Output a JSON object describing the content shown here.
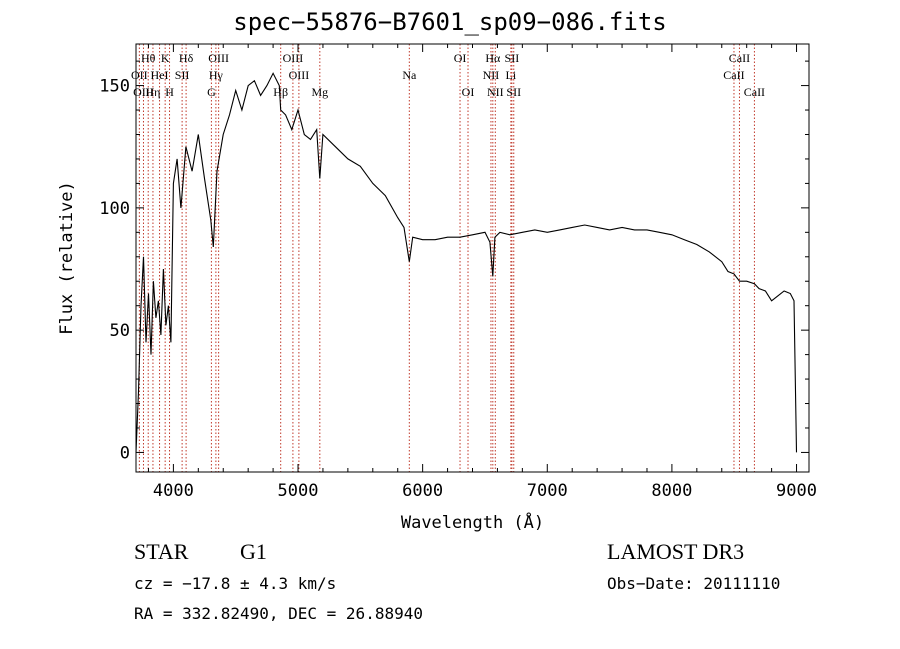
{
  "chart_data": {
    "type": "line",
    "title": "spec−55876−B7601_sp09−086.fits",
    "xlabel": "Wavelength (Å)",
    "ylabel": "Flux (relative)",
    "xlim": [
      3700,
      9100
    ],
    "ylim": [
      -8,
      167
    ],
    "xticks": [
      4000,
      5000,
      6000,
      7000,
      8000,
      9000
    ],
    "yticks": [
      0,
      50,
      100,
      150
    ],
    "series": [
      {
        "name": "spectrum",
        "x": [
          3700,
          3720,
          3740,
          3760,
          3780,
          3800,
          3820,
          3840,
          3860,
          3880,
          3900,
          3920,
          3940,
          3960,
          3980,
          4000,
          4030,
          4060,
          4100,
          4150,
          4200,
          4250,
          4300,
          4320,
          4350,
          4400,
          4450,
          4500,
          4550,
          4600,
          4650,
          4700,
          4750,
          4800,
          4850,
          4861,
          4900,
          4950,
          5000,
          5050,
          5100,
          5150,
          5175,
          5200,
          5300,
          5400,
          5500,
          5600,
          5700,
          5800,
          5850,
          5893,
          5920,
          6000,
          6100,
          6200,
          6300,
          6400,
          6500,
          6540,
          6563,
          6580,
          6620,
          6700,
          6800,
          6900,
          7000,
          7100,
          7200,
          7300,
          7400,
          7500,
          7600,
          7700,
          7800,
          7900,
          8000,
          8100,
          8200,
          8300,
          8400,
          8450,
          8498,
          8542,
          8600,
          8662,
          8700,
          8750,
          8800,
          8850,
          8900,
          8950,
          8980,
          8995,
          9000
        ],
        "y": [
          0,
          25,
          60,
          80,
          45,
          65,
          40,
          70,
          55,
          62,
          48,
          75,
          52,
          60,
          45,
          110,
          120,
          100,
          125,
          115,
          130,
          112,
          95,
          84,
          115,
          130,
          138,
          148,
          140,
          150,
          152,
          146,
          150,
          155,
          150,
          140,
          138,
          132,
          140,
          130,
          128,
          132,
          112,
          130,
          125,
          120,
          117,
          110,
          105,
          96,
          92,
          78,
          88,
          87,
          87,
          88,
          88,
          89,
          90,
          86,
          72,
          88,
          90,
          89,
          90,
          91,
          90,
          91,
          92,
          93,
          92,
          91,
          92,
          91,
          91,
          90,
          89,
          87,
          85,
          82,
          78,
          74,
          73,
          70,
          70,
          69,
          67,
          66,
          62,
          64,
          66,
          65,
          62,
          15,
          0
        ]
      }
    ],
    "lines": [
      {
        "name": "Hθ",
        "wl": 3798,
        "row": 1
      },
      {
        "name": "OII",
        "wl": 3727,
        "row": 2
      },
      {
        "name": "OIII",
        "wl": 3760,
        "row": 3
      },
      {
        "name": "Hη",
        "wl": 3836,
        "row": 3
      },
      {
        "name": "HeI",
        "wl": 3889,
        "row": 2
      },
      {
        "name": "K",
        "wl": 3934,
        "row": 1
      },
      {
        "name": "H",
        "wl": 3969,
        "row": 3
      },
      {
        "name": "SII",
        "wl": 4070,
        "row": 2
      },
      {
        "name": "Hδ",
        "wl": 4102,
        "row": 1
      },
      {
        "name": "OIII",
        "wl": 4363,
        "row": 1
      },
      {
        "name": "Hγ",
        "wl": 4341,
        "row": 2
      },
      {
        "name": "G",
        "wl": 4305,
        "row": 3
      },
      {
        "name": "OIII",
        "wl": 4959,
        "row": 1
      },
      {
        "name": "OIII",
        "wl": 5007,
        "row": 2
      },
      {
        "name": "Hβ",
        "wl": 4861,
        "row": 3
      },
      {
        "name": "Mg",
        "wl": 5175,
        "row": 3
      },
      {
        "name": "Na",
        "wl": 5893,
        "row": 2
      },
      {
        "name": "OI",
        "wl": 6300,
        "row": 1
      },
      {
        "name": "OI",
        "wl": 6364,
        "row": 3
      },
      {
        "name": "Hα",
        "wl": 6563,
        "row": 1
      },
      {
        "name": "NII",
        "wl": 6548,
        "row": 2
      },
      {
        "name": "NII",
        "wl": 6583,
        "row": 3
      },
      {
        "name": "SII",
        "wl": 6716,
        "row": 1
      },
      {
        "name": "Li",
        "wl": 6708,
        "row": 2
      },
      {
        "name": "SII",
        "wl": 6731,
        "row": 3
      },
      {
        "name": "CaII",
        "wl": 8542,
        "row": 1
      },
      {
        "name": "CaII",
        "wl": 8498,
        "row": 2
      },
      {
        "name": "CaII",
        "wl": 8662,
        "row": 3
      }
    ]
  },
  "info": {
    "object_class": "STAR",
    "subclass": "G1",
    "cz": "cz = −17.8 ± 4.3 km/s",
    "radec": "RA = 332.82490, DEC =  26.88940",
    "survey": "LAMOST DR3",
    "obs_date": "Obs−Date: 20111110"
  },
  "colors": {
    "axis": "#000000",
    "line_marker": "#c0392b"
  }
}
